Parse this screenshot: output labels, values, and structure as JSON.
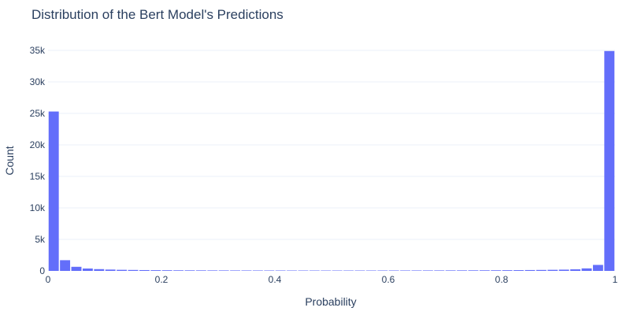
{
  "chart_data": {
    "type": "bar",
    "title": "Distribution of the Bert Model's Predictions",
    "xlabel": "Probability",
    "ylabel": "Count",
    "xlim": [
      0,
      1
    ],
    "ylim": [
      0,
      35000
    ],
    "bin_width": 0.02,
    "x_ticks": [
      0,
      0.2,
      0.4,
      0.6,
      0.8,
      1
    ],
    "x_tick_labels": [
      "0",
      "0.2",
      "0.4",
      "0.6",
      "0.8",
      "1"
    ],
    "y_ticks": [
      0,
      5000,
      10000,
      15000,
      20000,
      25000,
      30000,
      35000
    ],
    "y_tick_labels": [
      "0",
      "5k",
      "10k",
      "15k",
      "20k",
      "25k",
      "30k",
      "35k"
    ],
    "bar_color": "#636efa",
    "grid": true,
    "values": [
      25300,
      1700,
      650,
      380,
      280,
      210,
      170,
      150,
      130,
      115,
      105,
      95,
      90,
      85,
      80,
      78,
      75,
      72,
      70,
      68,
      66,
      65,
      64,
      63,
      62,
      62,
      63,
      64,
      65,
      66,
      68,
      70,
      72,
      75,
      78,
      82,
      86,
      90,
      95,
      100,
      110,
      120,
      135,
      150,
      170,
      200,
      250,
      400,
      950,
      34900
    ]
  }
}
